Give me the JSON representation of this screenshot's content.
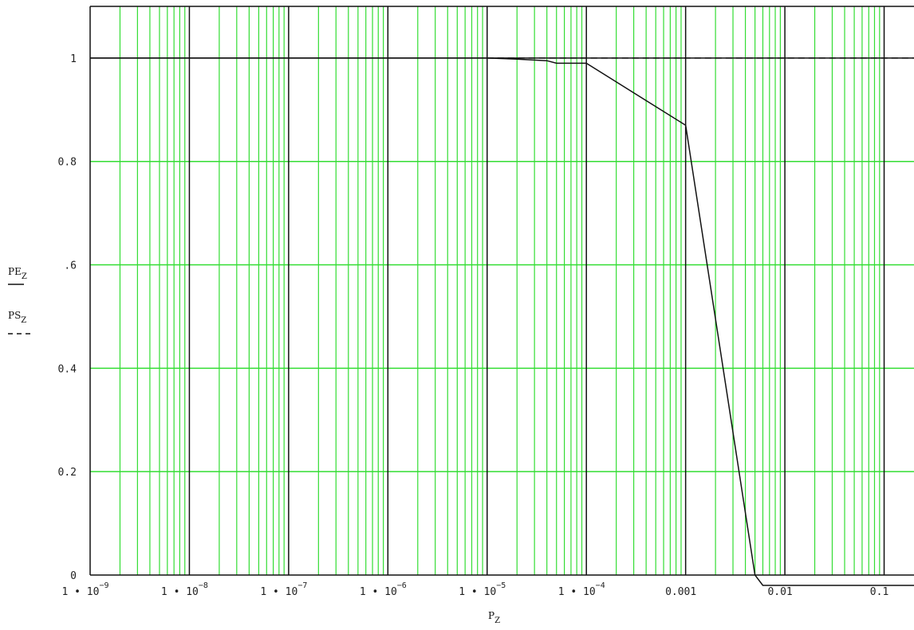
{
  "chart_data": {
    "type": "line",
    "xscale": "log",
    "xlim": [
      1e-09,
      0.2
    ],
    "ylim": [
      0,
      1.1
    ],
    "xlabel": {
      "base": "P",
      "sub": "Z"
    },
    "ylabel": [
      {
        "base": "PE",
        "sub": "Z",
        "style": "solid"
      },
      {
        "base": "PS",
        "sub": "Z",
        "style": "dashed"
      }
    ],
    "y_ticks": [
      {
        "v": 0,
        "label": "0"
      },
      {
        "v": 0.2,
        "label": "0.2"
      },
      {
        "v": 0.4,
        "label": "0.4"
      },
      {
        "v": 0.6,
        "label": ".6"
      },
      {
        "v": 0.8,
        "label": "0.8"
      },
      {
        "v": 1,
        "label": "1"
      }
    ],
    "x_ticks": [
      {
        "v": 1e-09,
        "base": "1 • 10",
        "exp": "−9"
      },
      {
        "v": 1e-08,
        "base": "1 • 10",
        "exp": "−8"
      },
      {
        "v": 1e-07,
        "base": "1 • 10",
        "exp": "−7"
      },
      {
        "v": 1e-06,
        "base": "1 • 10",
        "exp": "−6"
      },
      {
        "v": 1e-05,
        "base": "1 • 10",
        "exp": "−5"
      },
      {
        "v": 0.0001,
        "base": "1 • 10",
        "exp": "−4"
      },
      {
        "v": 0.001,
        "base": "0.001",
        "exp": ""
      },
      {
        "v": 0.01,
        "base": "0.01",
        "exp": ""
      },
      {
        "v": 0.1,
        "base": "0.1",
        "exp": ""
      }
    ],
    "grid": true,
    "colors": {
      "grid": "#33dd33",
      "major": "#111111",
      "line": "#111111",
      "background": "#ffffff"
    },
    "series": [
      {
        "style": "solid",
        "x": [
          1e-09,
          1e-05,
          2e-05,
          4e-05,
          5e-05,
          0.0001,
          0.001,
          0.005,
          0.006,
          0.2
        ],
        "y": [
          1,
          1,
          0.998,
          0.995,
          0.99,
          0.99,
          0.87,
          0,
          -0.02,
          -0.02
        ]
      },
      {
        "style": "dashed",
        "x": [
          1e-05,
          0.2
        ],
        "y": [
          1,
          1
        ]
      }
    ]
  }
}
